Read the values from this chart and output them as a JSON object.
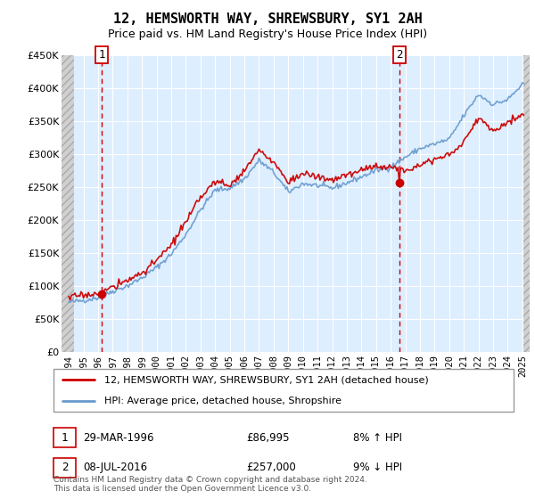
{
  "title": "12, HEMSWORTH WAY, SHREWSBURY, SY1 2AH",
  "subtitle": "Price paid vs. HM Land Registry's House Price Index (HPI)",
  "ylim": [
    0,
    450000
  ],
  "yticks": [
    0,
    50000,
    100000,
    150000,
    200000,
    250000,
    300000,
    350000,
    400000,
    450000
  ],
  "sale1_year": 1996.25,
  "sale1_price": 86995,
  "sale1_label": "1",
  "sale2_year": 2016.58,
  "sale2_price": 257000,
  "sale2_label": "2",
  "legend_line1": "12, HEMSWORTH WAY, SHREWSBURY, SY1 2AH (detached house)",
  "legend_line2": "HPI: Average price, detached house, Shropshire",
  "table_row1_date": "29-MAR-1996",
  "table_row1_price": "£86,995",
  "table_row1_hpi": "8% ↑ HPI",
  "table_row2_date": "08-JUL-2016",
  "table_row2_price": "£257,000",
  "table_row2_hpi": "9% ↓ HPI",
  "footer": "Contains HM Land Registry data © Crown copyright and database right 2024.\nThis data is licensed under the Open Government Licence v3.0.",
  "line_color_red": "#cc0000",
  "line_color_blue": "#6699cc",
  "background_plot": "#ddeeff",
  "grid_color": "#ffffff",
  "dashed_line_color": "#cc0000",
  "hatch_color": "#c8c8c8",
  "hpi_keypoints": {
    "1994": 75000,
    "1995": 78000,
    "1996": 82000,
    "1997": 92000,
    "1998": 100000,
    "1999": 112000,
    "2000": 128000,
    "2001": 148000,
    "2002": 178000,
    "2003": 215000,
    "2004": 245000,
    "2005": 248000,
    "2006": 262000,
    "2007": 290000,
    "2008": 272000,
    "2009": 242000,
    "2010": 255000,
    "2011": 252000,
    "2012": 248000,
    "2013": 256000,
    "2014": 265000,
    "2015": 275000,
    "2016": 280000,
    "2017": 295000,
    "2018": 308000,
    "2019": 315000,
    "2020": 322000,
    "2021": 358000,
    "2022": 390000,
    "2023": 375000,
    "2024": 382000,
    "2025": 405000
  },
  "red_keypoints": {
    "1994": 83000,
    "1995": 86000,
    "1996": 88000,
    "1997": 98000,
    "1998": 108000,
    "1999": 120000,
    "2000": 138000,
    "2001": 162000,
    "2002": 196000,
    "2003": 235000,
    "2004": 258000,
    "2005": 252000,
    "2006": 275000,
    "2007": 305000,
    "2008": 287000,
    "2009": 258000,
    "2010": 270000,
    "2011": 265000,
    "2012": 260000,
    "2013": 268000,
    "2014": 275000,
    "2015": 282000,
    "2016": 280000,
    "2017": 275000,
    "2018": 285000,
    "2019": 292000,
    "2020": 298000,
    "2021": 318000,
    "2022": 355000,
    "2023": 335000,
    "2024": 348000,
    "2025": 360000
  }
}
